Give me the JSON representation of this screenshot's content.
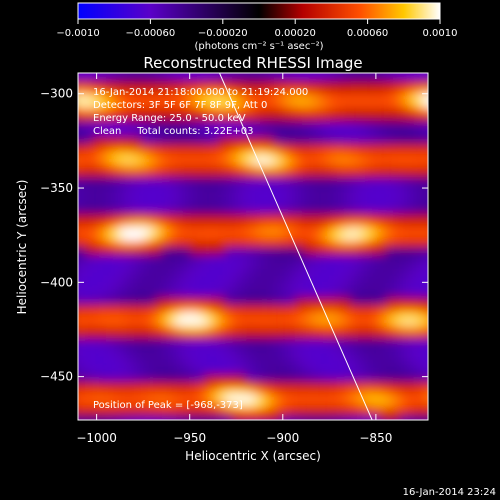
{
  "chart_data": {
    "type": "heatmap",
    "title": "Reconstructed RHESSI Image",
    "xlabel": "Heliocentric X (arcsec)",
    "ylabel": "Heliocentric Y (arcsec)",
    "xlim": [
      -1010,
      -822
    ],
    "ylim": [
      -473,
      -289
    ],
    "xticks": [
      -1000,
      -950,
      -900,
      -850
    ],
    "yticks": [
      -300,
      -350,
      -400,
      -450
    ],
    "xtick_labels": [
      "−1000",
      "−950",
      "−900",
      "−850"
    ],
    "ytick_labels": [
      "−300",
      "−350",
      "−400",
      "−450"
    ],
    "colorbar": {
      "min": -0.001,
      "max": 0.001,
      "ticks": [
        -0.001,
        -0.0006,
        -0.0002,
        0.0002,
        0.0006,
        0.001
      ],
      "tick_labels": [
        "−0.0010",
        "−0.00060",
        "−0.00020",
        "0.00020",
        "0.00060",
        "0.0010"
      ],
      "unit_label": "(photons cm⁻² s⁻¹ asec⁻²)",
      "colors": [
        "#0000ff",
        "#5a00c8",
        "#000000",
        "#b40000",
        "#ff5000",
        "#ffc800",
        "#ffffff"
      ]
    },
    "bright_bands_y": [
      -302,
      -333,
      -372,
      -418,
      -460
    ],
    "annotations": [
      "16-Jan-2014 21:18:00.000 to 21:19:24.000",
      "Detectors: 3F 5F 6F 7F 8F 9F, Att 0",
      "Energy Range: 25.0 - 50.0 keV",
      "Clean     Total counts: 3.22E+03"
    ],
    "peak_label": "Position of Peak = [-968,-373]",
    "limb_line": [
      [
        -934,
        -289
      ],
      [
        -852,
        -473
      ]
    ]
  },
  "footer_timestamp": "16-Jan-2014 23:24"
}
